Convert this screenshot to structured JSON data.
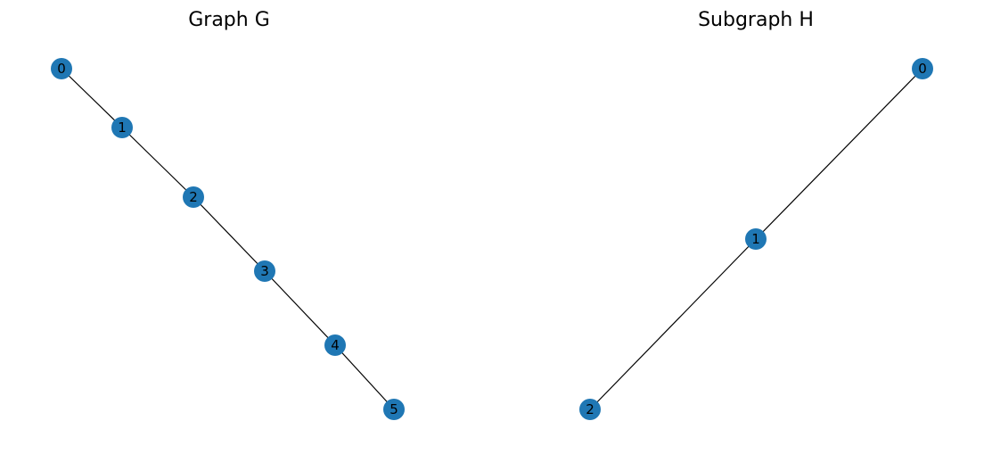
{
  "panels": [
    {
      "title": "Graph G",
      "node_color": "#1f77b4",
      "nodes": [
        "0",
        "1",
        "2",
        "3",
        "4",
        "5"
      ],
      "edges": [
        [
          "0",
          "1"
        ],
        [
          "1",
          "2"
        ],
        [
          "2",
          "3"
        ],
        [
          "3",
          "4"
        ],
        [
          "4",
          "5"
        ]
      ]
    },
    {
      "title": "Subgraph H",
      "node_color": "#1f77b4",
      "nodes": [
        "0",
        "1",
        "2"
      ],
      "edges": [
        [
          "0",
          "1"
        ],
        [
          "1",
          "2"
        ]
      ]
    }
  ]
}
